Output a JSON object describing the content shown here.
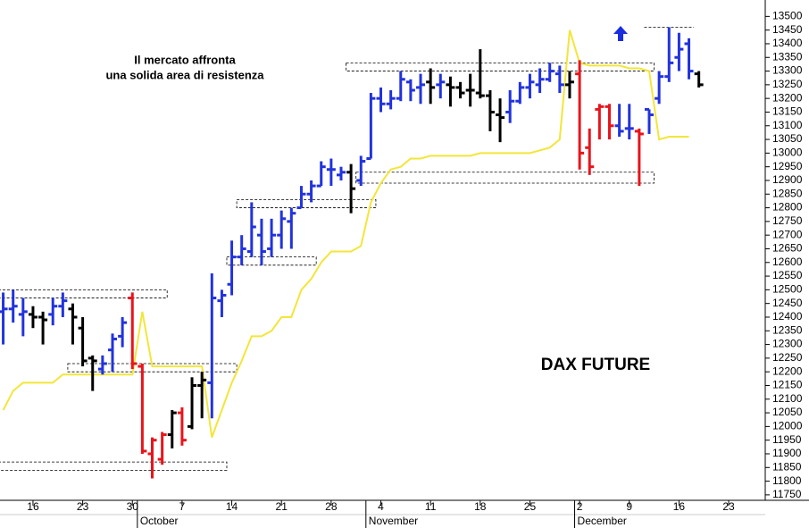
{
  "chart_data": {
    "type": "ohlc",
    "title": "DAX FUTURE",
    "note": [
      "Il mercato affronta",
      "una solida area di resistenza"
    ],
    "categories": [
      null,
      null,
      null,
      "16",
      null,
      null,
      null,
      null,
      "23",
      null,
      null,
      null,
      null,
      "30",
      null,
      null,
      null,
      null,
      "7",
      null,
      null,
      null,
      null,
      "14",
      null,
      null,
      null,
      null,
      "21",
      null,
      null,
      null,
      null,
      "28",
      null,
      null,
      null,
      null,
      "4",
      null,
      null,
      null,
      null,
      "11",
      null,
      null,
      null,
      null,
      "18",
      null,
      null,
      null,
      null,
      "25",
      null,
      null,
      null,
      null,
      "2",
      null,
      null,
      null,
      null,
      "9",
      null,
      null,
      null,
      null,
      "16",
      null,
      null,
      null,
      null,
      "23",
      null,
      null,
      null
    ],
    "months": [
      null,
      null,
      null,
      null,
      null,
      null,
      null,
      null,
      null,
      null,
      null,
      null,
      null,
      null,
      "October",
      null,
      null,
      null,
      null,
      null,
      null,
      null,
      null,
      null,
      null,
      null,
      null,
      null,
      null,
      null,
      null,
      null,
      null,
      null,
      null,
      null,
      null,
      "November",
      null,
      null,
      null,
      null,
      null,
      null,
      null,
      null,
      null,
      null,
      null,
      null,
      null,
      null,
      null,
      null,
      null,
      null,
      null,
      null,
      "December",
      null,
      null,
      null,
      null,
      null,
      null,
      null,
      null,
      null,
      null,
      null,
      null,
      null,
      null,
      null,
      null,
      null,
      null
    ],
    "open": [
      12420,
      12430,
      12410,
      12410,
      12400,
      12410,
      12440,
      12430,
      12360,
      12250,
      12210,
      12280,
      12330,
      12470,
      12220,
      11900,
      11880,
      11970,
      12050,
      12000,
      12150,
      12160,
      12460,
      12520,
      12620,
      12640,
      12700,
      12650,
      12700,
      12750,
      12800,
      12850,
      12880,
      12940,
      12920,
      12930,
      12900,
      12980,
      13200,
      13180,
      13200,
      13260,
      13240,
      13260,
      13250,
      13250,
      13240,
      13230,
      13220,
      13210,
      13140,
      13150,
      13190,
      13240,
      13250,
      13270,
      13290,
      13250,
      13290,
      13020,
      13160,
      13170,
      13100,
      13090,
      13080,
      13160,
      13200,
      13280,
      13350,
      13400,
      13290,
      null,
      null,
      null,
      null,
      null,
      null
    ],
    "high": [
      12490,
      12500,
      12470,
      12440,
      12420,
      12470,
      12490,
      12450,
      12400,
      12260,
      12260,
      12340,
      12400,
      12490,
      12230,
      11960,
      11980,
      12060,
      12070,
      12180,
      12200,
      12560,
      12500,
      12680,
      12700,
      12820,
      12760,
      12760,
      12790,
      12800,
      12880,
      12900,
      12970,
      12980,
      12950,
      12960,
      12990,
      13220,
      13240,
      13230,
      13300,
      13270,
      13290,
      13310,
      13290,
      13280,
      13260,
      13290,
      13380,
      13230,
      13200,
      13230,
      13260,
      13290,
      13310,
      13330,
      13320,
      13300,
      13340,
      13090,
      13180,
      13180,
      13180,
      13180,
      13090,
      13160,
      13300,
      13460,
      13440,
      13420,
      13300,
      null,
      null,
      null,
      null,
      null,
      null
    ],
    "low": [
      12300,
      12380,
      12330,
      12360,
      12300,
      12370,
      12400,
      12300,
      12220,
      12130,
      12190,
      12200,
      12290,
      12210,
      11900,
      11810,
      11860,
      11920,
      11930,
      11990,
      12030,
      12030,
      12400,
      12480,
      12590,
      12620,
      12590,
      12620,
      12650,
      12650,
      12800,
      12820,
      12880,
      12880,
      12900,
      12780,
      12880,
      12980,
      13150,
      13160,
      13190,
      13190,
      13180,
      13180,
      13200,
      13170,
      13200,
      13170,
      13200,
      13080,
      13040,
      13110,
      13180,
      13200,
      13220,
      13260,
      13220,
      13200,
      12940,
      12920,
      13050,
      13050,
      13060,
      13050,
      12880,
      13070,
      13180,
      13260,
      13300,
      13270,
      13240,
      null,
      null,
      null,
      null,
      null,
      null
    ],
    "close": [
      12430,
      12440,
      12420,
      12400,
      12390,
      12440,
      12460,
      12400,
      12240,
      12240,
      12230,
      12320,
      12380,
      12230,
      11910,
      11950,
      11970,
      12050,
      11950,
      12150,
      12170,
      12470,
      12480,
      12620,
      12650,
      12730,
      12640,
      12700,
      12760,
      12780,
      12850,
      12880,
      12950,
      12940,
      12930,
      12870,
      12970,
      13200,
      13180,
      13200,
      13270,
      13230,
      13250,
      13240,
      13260,
      13240,
      13220,
      13230,
      13210,
      13150,
      13130,
      13190,
      13240,
      13260,
      13270,
      13300,
      13250,
      13260,
      13000,
      12950,
      13170,
      13100,
      13080,
      13090,
      13070,
      13140,
      13280,
      13330,
      13380,
      13300,
      13250,
      null,
      null,
      null,
      null,
      null,
      null
    ],
    "colors": [
      "#2233dd",
      "#2233dd",
      "#2233dd",
      "#000000",
      "#000000",
      "#2233dd",
      "#2233dd",
      "#000000",
      "#000000",
      "#000000",
      "#2233dd",
      "#2233dd",
      "#2233dd",
      "#e8141c",
      "#e8141c",
      "#e8141c",
      "#e8141c",
      "#000000",
      "#e8141c",
      "#000000",
      "#000000",
      "#2233dd",
      "#2233dd",
      "#2233dd",
      "#2233dd",
      "#2233dd",
      "#2233dd",
      "#2233dd",
      "#2233dd",
      "#2233dd",
      "#2233dd",
      "#2233dd",
      "#2233dd",
      "#2233dd",
      "#2233dd",
      "#000000",
      "#2233dd",
      "#2233dd",
      "#2233dd",
      "#2233dd",
      "#2233dd",
      "#2233dd",
      "#2233dd",
      "#000000",
      "#2233dd",
      "#000000",
      "#000000",
      "#000000",
      "#000000",
      "#000000",
      "#000000",
      "#2233dd",
      "#2233dd",
      "#2233dd",
      "#2233dd",
      "#2233dd",
      "#2233dd",
      "#000000",
      "#e8141c",
      "#e8141c",
      "#e8141c",
      "#e8141c",
      "#2233dd",
      "#2233dd",
      "#e8141c",
      "#2233dd",
      "#2233dd",
      "#2233dd",
      "#2233dd",
      "#2233dd",
      "#000000",
      null,
      null,
      null,
      null,
      null,
      null
    ],
    "stop": {
      "color": "#f2e63a",
      "values": [
        12060,
        12130,
        12160,
        12160,
        12160,
        12160,
        12190,
        12190,
        12190,
        12190,
        12190,
        12190,
        12190,
        12190,
        12420,
        12220,
        12220,
        12220,
        12220,
        12220,
        12220,
        11960,
        12060,
        12160,
        12240,
        12330,
        12330,
        12350,
        12400,
        12400,
        12500,
        12540,
        12600,
        12640,
        12640,
        12640,
        12660,
        12820,
        12890,
        12940,
        12950,
        12980,
        12980,
        12990,
        12990,
        12990,
        12990,
        12990,
        13000,
        13000,
        13000,
        13000,
        13000,
        13000,
        13010,
        13020,
        13050,
        13450,
        13330,
        13320,
        13320,
        13320,
        13320,
        13310,
        13310,
        13300,
        13050,
        13060,
        13060,
        13060,
        null,
        null,
        null,
        null,
        null,
        null,
        null
      ]
    },
    "zones": [
      {
        "from": 0,
        "to": 16,
        "low": 12470,
        "high": 12500
      },
      {
        "from": 7,
        "to": 23,
        "low": 12200,
        "high": 12230
      },
      {
        "from": 0,
        "to": 22,
        "low": 11840,
        "high": 11870
      },
      {
        "from": 23,
        "to": 31,
        "low": 12590,
        "high": 12620
      },
      {
        "from": 24,
        "to": 37,
        "low": 12800,
        "high": 12830
      },
      {
        "from": 35,
        "to": 65,
        "low": 13300,
        "high": 13330
      },
      {
        "from": 36,
        "to": 65,
        "low": 12890,
        "high": 12930
      },
      {
        "from": 65,
        "to": 69,
        "low": 13460,
        "high": 13460
      }
    ],
    "ylim": [
      11730,
      13560
    ],
    "yticks": [
      11750,
      11800,
      11850,
      11900,
      11950,
      12000,
      12050,
      12100,
      12150,
      12200,
      12250,
      12300,
      12350,
      12400,
      12450,
      12500,
      12550,
      12600,
      12650,
      12700,
      12750,
      12800,
      12850,
      12900,
      12950,
      13000,
      13050,
      13100,
      13150,
      13200,
      13250,
      13300,
      13350,
      13400,
      13450,
      13500
    ]
  }
}
